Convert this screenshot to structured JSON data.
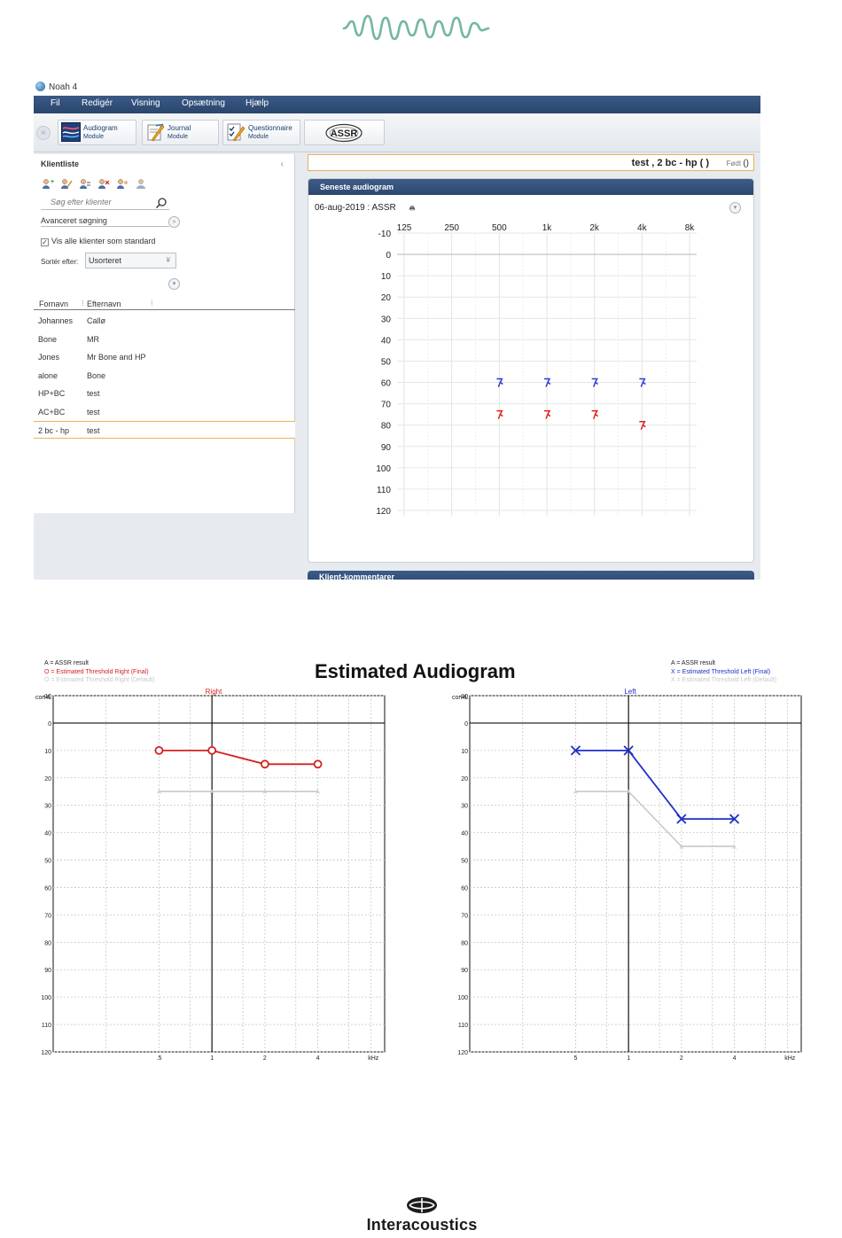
{
  "noah": {
    "window_title": "Noah 4",
    "menu": [
      "Fil",
      "Redigér",
      "Visning",
      "Opsætning",
      "Hjælp"
    ],
    "modules": [
      {
        "label": "Audiogram",
        "sub": "Module",
        "icon": "audiogram-icon"
      },
      {
        "label": "Journal",
        "sub": "Module",
        "icon": "journal-icon"
      },
      {
        "label": "Questionnaire",
        "sub": "Module",
        "icon": "questionnaire-icon"
      },
      {
        "label": "ASSR",
        "sub": "",
        "icon": "assr-logo"
      }
    ],
    "client_list": {
      "title": "Klientliste",
      "search_placeholder": "Søg efter klienter",
      "advanced_search": "Avanceret søgning",
      "show_all": "Vis alle klienter som standard",
      "show_all_checked": true,
      "sort_label": "Sortér efter:",
      "sort_value": "Usorteret",
      "columns": [
        "Fornavn",
        "Efternavn"
      ],
      "rows": [
        {
          "first": "Johannes",
          "last": "Callø"
        },
        {
          "first": "Bone",
          "last": "MR"
        },
        {
          "first": "Jones",
          "last": "Mr Bone and HP"
        },
        {
          "first": "alone",
          "last": "Bone"
        },
        {
          "first": "HP+BC",
          "last": "test"
        },
        {
          "first": "AC+BC",
          "last": "test"
        },
        {
          "first": "2 bc - hp",
          "last": "test",
          "selected": true
        }
      ]
    },
    "client_header": {
      "name": "test ,  2 bc - hp  (  )",
      "born_label": "Født",
      "born_value": "()"
    },
    "latest_audiogram": {
      "title": "Seneste audiogram",
      "session": "06-aug-2019 : ASSR"
    },
    "comments_title": "Klient-kommentarer"
  },
  "chart_data": [
    {
      "type": "scatter",
      "name": "noah-audiogram",
      "x_categories": [
        "125",
        "250",
        "500",
        "1k",
        "2k",
        "4k",
        "8k"
      ],
      "y_ticks": [
        -10,
        0,
        10,
        20,
        30,
        40,
        50,
        60,
        70,
        80,
        90,
        100,
        110,
        120
      ],
      "ylim": [
        -10,
        120
      ],
      "y_inverted": true,
      "series": [
        {
          "color": "#2a3fd4",
          "x": [
            "500",
            "1k",
            "2k",
            "4k"
          ],
          "y": [
            60,
            60,
            60,
            60
          ]
        },
        {
          "color": "#e0201c",
          "x": [
            "500",
            "1k",
            "2k",
            "4k"
          ],
          "y": [
            75,
            75,
            75,
            80
          ]
        }
      ]
    },
    {
      "type": "line",
      "name": "estimated-right",
      "title": "Estimated Audiogram",
      "panel_label": "Right",
      "ylabel": "corHL",
      "xlabel": "kHz",
      "x_tick_labels": [
        ".5",
        "1",
        "2",
        "4"
      ],
      "y_ticks": [
        -10,
        0,
        10,
        20,
        30,
        40,
        50,
        60,
        70,
        80,
        90,
        100,
        110,
        120
      ],
      "ylim": [
        -10,
        120
      ],
      "y_inverted": true,
      "legend": [
        "A = ASSR result",
        "O = Estimated Threshold Right (Final)",
        "O = Estimated Threshold Right (Default)"
      ],
      "series": [
        {
          "color": "#d42020",
          "marker": "O",
          "x": [
            0.5,
            1,
            2,
            4
          ],
          "y": [
            10,
            10,
            15,
            15
          ]
        },
        {
          "color": "#c9c9c9",
          "marker": "A",
          "x": [
            0.5,
            1,
            2,
            4
          ],
          "y": [
            25,
            25,
            25,
            25
          ]
        }
      ]
    },
    {
      "type": "line",
      "name": "estimated-left",
      "panel_label": "Left",
      "ylabel": "corHL",
      "xlabel": "kHz",
      "x_tick_labels": [
        "5",
        "1",
        "2",
        "4"
      ],
      "y_ticks": [
        -10,
        0,
        10,
        20,
        30,
        40,
        50,
        60,
        70,
        80,
        90,
        100,
        110,
        120
      ],
      "ylim": [
        -10,
        120
      ],
      "y_inverted": true,
      "legend": [
        "A = ASSR result",
        "X = Estimated Threshold Left (Final)",
        "X = Estimated Threshold Left (Default)"
      ],
      "series": [
        {
          "color": "#1e2fc8",
          "marker": "X",
          "x": [
            0.5,
            1,
            2,
            4
          ],
          "y": [
            10,
            10,
            35,
            35
          ]
        },
        {
          "color": "#c9c9c9",
          "marker": "A",
          "x": [
            0.5,
            1,
            2,
            4
          ],
          "y": [
            25,
            25,
            45,
            45
          ]
        }
      ]
    }
  ],
  "footer": {
    "brand": "Interacoustics"
  },
  "colors": {
    "accent": "#2c4870",
    "header_border": "#e3b160",
    "logo_green": "#74b7a0"
  }
}
